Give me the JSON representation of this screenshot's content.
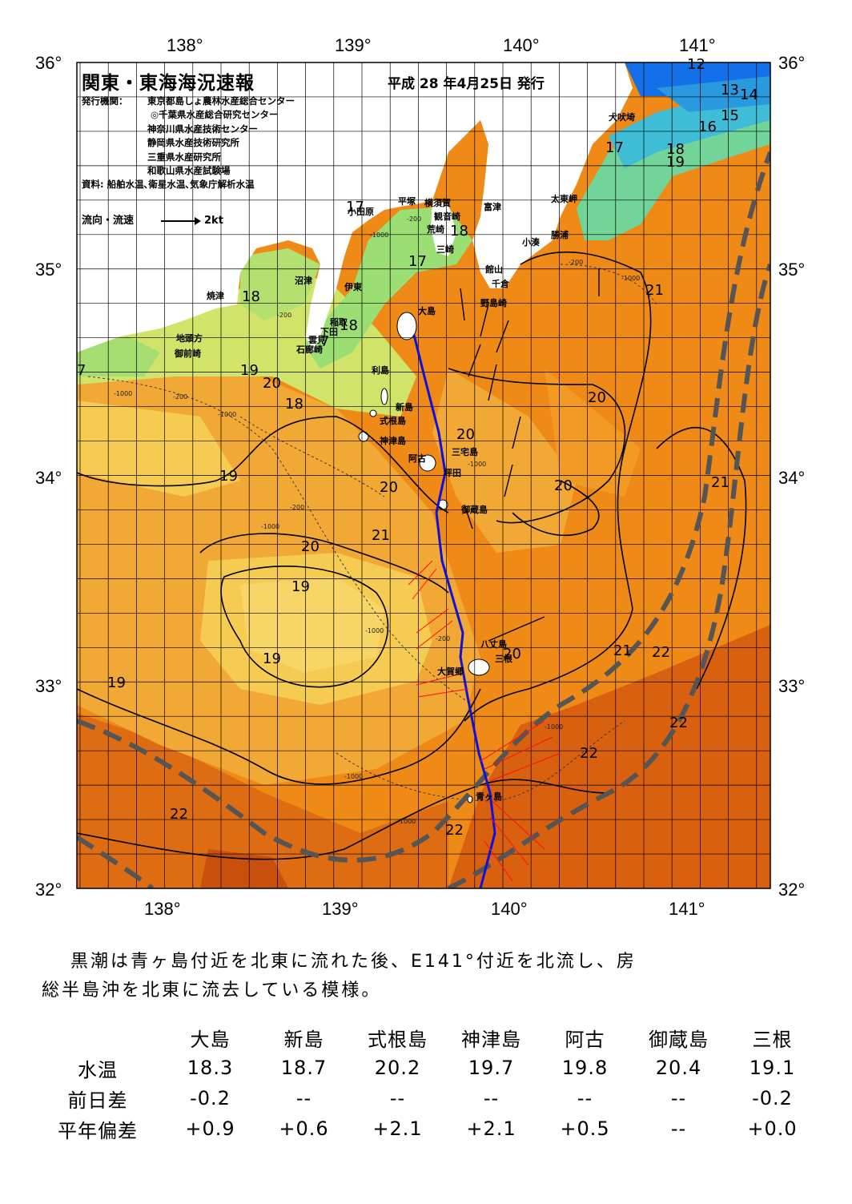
{
  "map": {
    "title": "関東・東海海況速報",
    "issued": "平成 28 年4月25日 発行",
    "agencies_label": "発行機関：",
    "agencies": [
      "東京都島しょ農林水産総合センター",
      "◎千葉県水産総合研究センター",
      "神奈川県水産技術センター",
      "静岡県水産技術研究所",
      "三重県水産研究所",
      "和歌山県水産試験場"
    ],
    "sources": "資料: 船舶水温､衛星水温､気象庁解析水温",
    "flow_legend_label": "流向・流速",
    "flow_legend_scale": "2kt",
    "lon_labels": [
      "138°",
      "139°",
      "140°",
      "141°"
    ],
    "lat_labels": [
      "36°",
      "35°",
      "34°",
      "33°",
      "32°"
    ],
    "place_names": [
      "犬吠埼",
      "太東岬",
      "勝浦",
      "小湊",
      "富津",
      "館山",
      "千倉",
      "野島崎",
      "横須賀",
      "観音崎",
      "荒崎",
      "三崎",
      "平塚",
      "小田原",
      "沼津",
      "伊東",
      "稲取",
      "下田",
      "雲見",
      "石廊崎",
      "焼津",
      "地頭方",
      "御前崎",
      "大島",
      "利島",
      "新島",
      "式根島",
      "神津島",
      "三宅島",
      "阿古",
      "坪田",
      "御蔵島",
      "八丈島",
      "三根",
      "大賀郷",
      "青ヶ島"
    ],
    "sst_labels": [
      "12",
      "13",
      "14",
      "15",
      "16",
      "17",
      "18",
      "19",
      "17",
      "18",
      "17",
      "18",
      "18",
      "19",
      "20",
      "18",
      "19",
      "20",
      "20",
      "20",
      "21",
      "20",
      "21",
      "19",
      "21",
      "20",
      "19",
      "19",
      "20",
      "20",
      "21",
      "22",
      "22",
      "22",
      "22",
      "20",
      "7",
      "7"
    ],
    "depth_labels": [
      "-200",
      "-1000"
    ]
  },
  "summary": {
    "line1": "黒潮は青ヶ島付近を北東に流れた後、E141°付近を北流し、房",
    "line2": "総半島沖を北東に流去している模様。"
  },
  "table": {
    "stations": [
      "大島",
      "新島",
      "式根島",
      "神津島",
      "阿古",
      "御蔵島",
      "三根"
    ],
    "rows": [
      {
        "label": "水温",
        "values": [
          "18.3",
          "18.7",
          "20.2",
          "19.7",
          "19.8",
          "20.4",
          "19.1"
        ]
      },
      {
        "label": "前日差",
        "values": [
          "-0.2",
          "--",
          "--",
          "--",
          "--",
          "--",
          "-0.2"
        ]
      },
      {
        "label": "平年偏差",
        "values": [
          "+0.9",
          "+0.6",
          "+2.1",
          "+2.1",
          "+0.5",
          "--",
          "+0.0"
        ]
      }
    ]
  },
  "colors": {
    "warm_22": "#d9600f",
    "sst_21": "#ef8a16",
    "sst_20": "#f2a834",
    "sst_19": "#f6cb52",
    "sst_18": "#d2e36a",
    "sst_17": "#9ade74",
    "sst_16": "#73d49a",
    "sst_14": "#3fbcd6",
    "sst_12": "#1470e8",
    "land": "#ffffff",
    "kuroshio_axis": "#555555",
    "ship_track": "#1010dd",
    "current_vectors": "#ff1010"
  }
}
